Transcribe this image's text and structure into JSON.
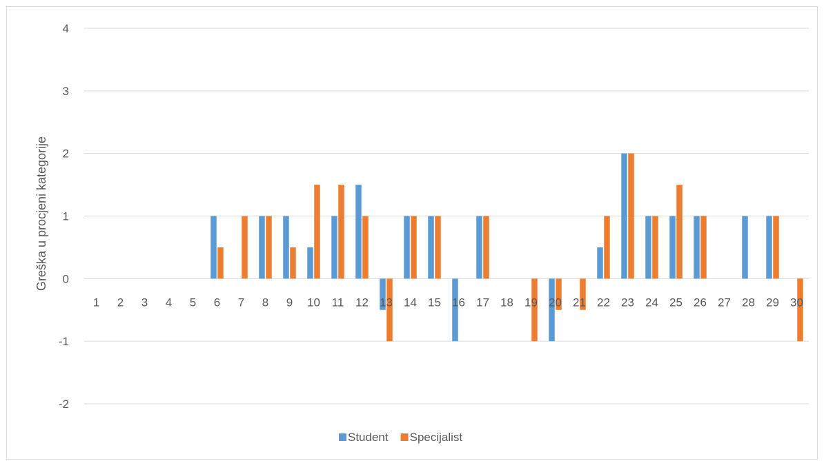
{
  "chart_data": {
    "type": "bar",
    "title": "",
    "xlabel": "",
    "ylabel": "Greška u procjeni kategorije",
    "ylim": [
      -2,
      4
    ],
    "yticks": [
      -2,
      -1,
      0,
      1,
      2,
      3,
      4
    ],
    "grid": true,
    "legend_position": "bottom",
    "categories": [
      "1",
      "2",
      "3",
      "4",
      "5",
      "6",
      "7",
      "8",
      "9",
      "10",
      "11",
      "12",
      "13",
      "14",
      "15",
      "16",
      "17",
      "18",
      "19",
      "20",
      "21",
      "22",
      "23",
      "24",
      "25",
      "26",
      "27",
      "28",
      "29",
      "30"
    ],
    "series": [
      {
        "name": "Student",
        "color": "#5b9bd5",
        "values": [
          0,
          0,
          0,
          0,
          0,
          1,
          0,
          1,
          1,
          0.5,
          1,
          1.5,
          -0.5,
          1,
          1,
          -1,
          1,
          0,
          0,
          -1,
          0,
          0.5,
          2,
          1,
          1,
          1,
          0,
          1,
          1,
          0
        ]
      },
      {
        "name": "Specijalist",
        "color": "#ed7d31",
        "values": [
          0,
          0,
          0,
          0,
          0,
          0.5,
          1,
          1,
          0.5,
          1.5,
          1.5,
          1,
          -1,
          1,
          1,
          0,
          1,
          0,
          -1,
          -0.5,
          -0.5,
          1,
          2,
          1,
          1.5,
          1,
          0,
          0,
          1,
          -1
        ]
      }
    ],
    "gridline_color": "#d9d9d9"
  }
}
